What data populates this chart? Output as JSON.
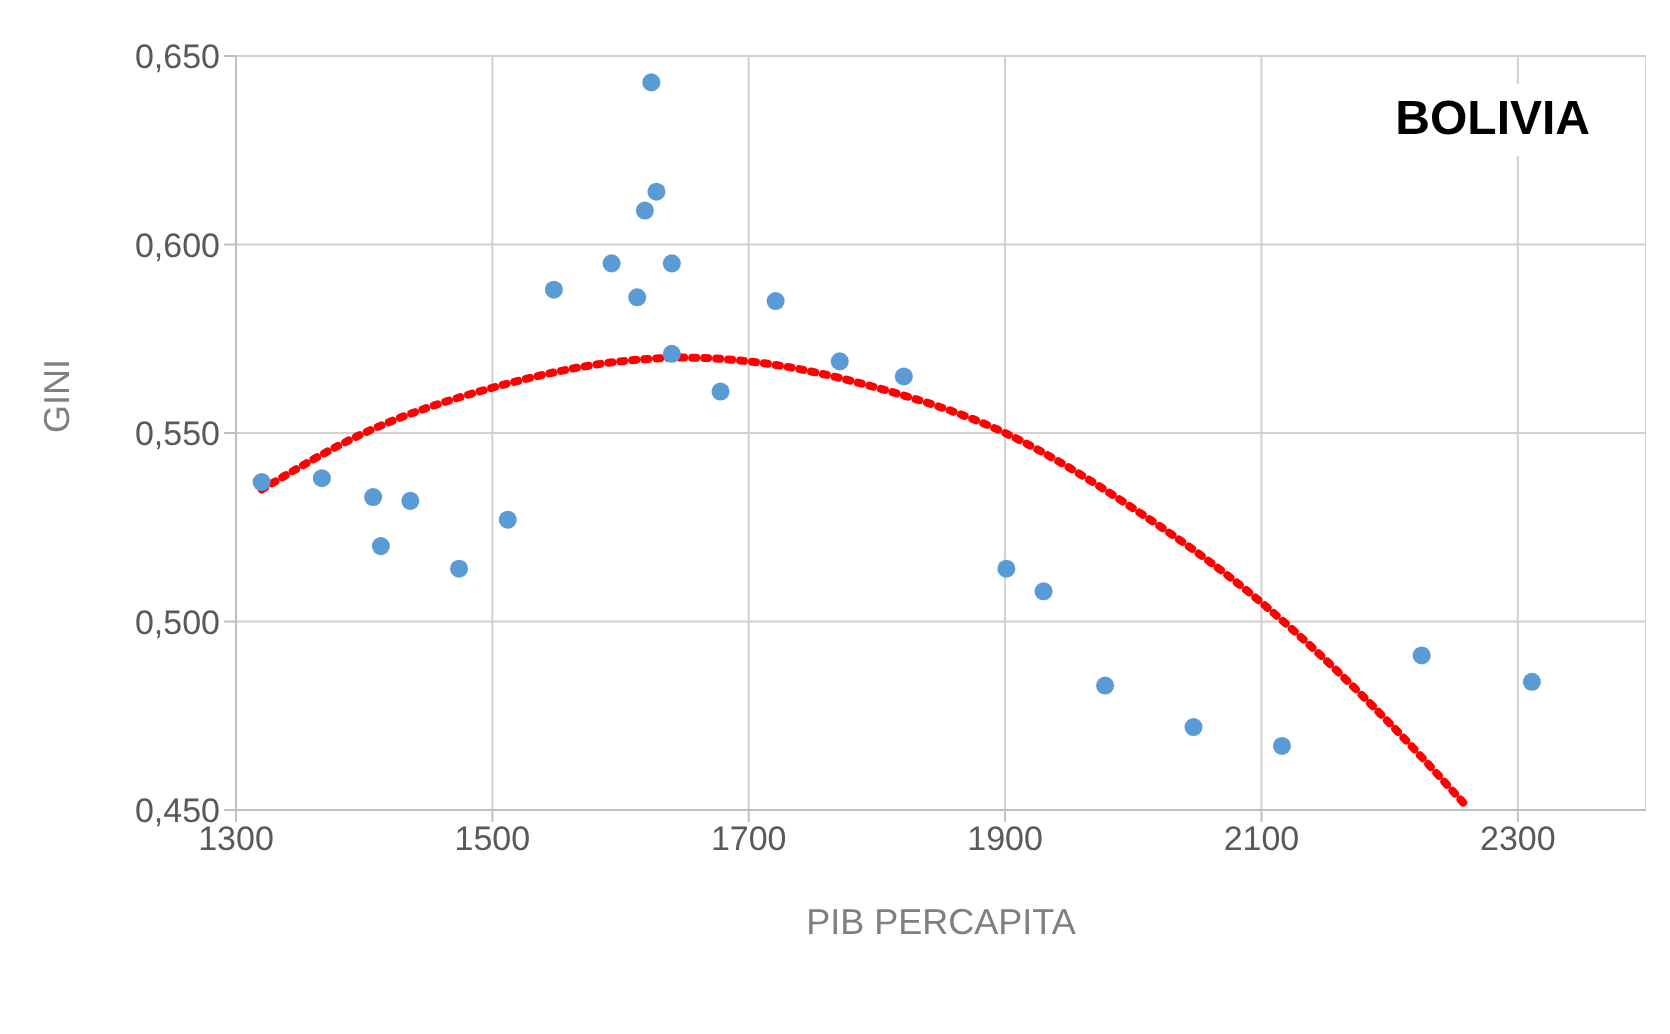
{
  "chart_data": {
    "type": "scatter",
    "title": "BOLIVIA",
    "xlabel": "PIB PERCAPITA",
    "ylabel": "GINI",
    "xlim": [
      1300,
      2400
    ],
    "xticks": [
      1300,
      1500,
      1700,
      1900,
      2100,
      2300
    ],
    "ylim": [
      0.45,
      0.65
    ],
    "yticks": [
      {
        "value": 0.45,
        "label": "0,450"
      },
      {
        "value": 0.5,
        "label": "0,500"
      },
      {
        "value": 0.55,
        "label": "0,550"
      },
      {
        "value": 0.6,
        "label": "0,600"
      },
      {
        "value": 0.65,
        "label": "0,650"
      }
    ],
    "grid": true,
    "marker": "circle",
    "series": [
      {
        "color": "#5b9bd5",
        "x": [
          1320,
          1367,
          1407,
          1413,
          1436,
          1474,
          1512,
          1548,
          1593,
          1613,
          1619,
          1624,
          1628,
          1640,
          1640,
          1678,
          1721,
          1771,
          1821,
          1901,
          1930,
          1978,
          2047,
          2116,
          2225,
          2311
        ],
        "values": [
          0.537,
          0.538,
          0.533,
          0.52,
          0.532,
          0.514,
          0.527,
          0.588,
          0.595,
          0.586,
          0.609,
          0.643,
          0.614,
          0.595,
          0.571,
          0.561,
          0.585,
          0.569,
          0.565,
          0.514,
          0.508,
          0.483,
          0.472,
          0.467,
          0.491,
          0.484
        ]
      },
      {
        "type": "line",
        "color": "#ff0000",
        "line_style": "dotted",
        "marker": "none",
        "x": [
          1320,
          1400,
          1500,
          1600,
          1650,
          1700,
          1800,
          1900,
          2000,
          2100,
          2200,
          2260
        ],
        "values": [
          0.535,
          0.55,
          0.562,
          0.569,
          0.57,
          0.569,
          0.562,
          0.55,
          0.53,
          0.505,
          0.473,
          0.451
        ]
      }
    ]
  }
}
